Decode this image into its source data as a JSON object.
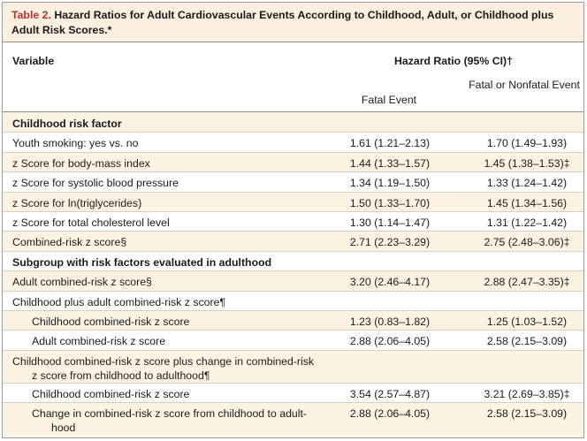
{
  "table": {
    "number": "Table 2.",
    "title": "Hazard Ratios for Adult Cardiovascular Events According to Childhood, Adult, or Childhood plus Adult Risk Scores.*",
    "headers": {
      "variable": "Variable",
      "hazard_ratio": "Hazard Ratio (95% CI)†",
      "fatal": "Fatal Event",
      "fatal_nonfatal": "Fatal or Nonfatal Event"
    },
    "rows": [
      {
        "label": "Childhood risk factor",
        "type": "section",
        "fatal": "",
        "fatal_nonfatal": ""
      },
      {
        "label": "Youth smoking: yes vs. no",
        "type": "item",
        "fatal": "1.61 (1.21–2.13)",
        "fatal_nonfatal": "1.70 (1.49–1.93)"
      },
      {
        "label": "z Score for body-mass index",
        "type": "item",
        "fatal": "1.44 (1.33–1.57)",
        "fatal_nonfatal": "1.45 (1.38–1.53)‡"
      },
      {
        "label": "z Score for systolic blood pressure",
        "type": "item",
        "fatal": "1.34 (1.19–1.50)",
        "fatal_nonfatal": "1.33 (1.24–1.42)"
      },
      {
        "label": "z Score for ln(triglycerides)",
        "type": "item",
        "fatal": "1.50 (1.33–1.70)",
        "fatal_nonfatal": "1.45 (1.34–1.56)"
      },
      {
        "label": "z Score for total cholesterol level",
        "type": "item",
        "fatal": "1.30 (1.14–1.47)",
        "fatal_nonfatal": "1.31 (1.22–1.42)"
      },
      {
        "label": "Combined-risk z score§",
        "type": "item",
        "fatal": "2.71 (2.23–3.29)",
        "fatal_nonfatal": "2.75 (2.48–3.06)‡"
      },
      {
        "label": "Subgroup with risk factors evaluated in adulthood",
        "type": "section",
        "fatal": "",
        "fatal_nonfatal": ""
      },
      {
        "label": "Adult combined-risk z score§",
        "type": "item",
        "fatal": "3.20 (2.46–4.17)",
        "fatal_nonfatal": "2.88 (2.47–3.35)‡"
      },
      {
        "label": "Childhood plus adult combined-risk z score¶",
        "type": "item",
        "fatal": "",
        "fatal_nonfatal": ""
      },
      {
        "label": "Childhood combined-risk z score",
        "type": "sub",
        "fatal": "1.23 (0.83–1.82)",
        "fatal_nonfatal": "1.25 (1.03–1.52)"
      },
      {
        "label": "Adult combined-risk z score",
        "type": "sub",
        "fatal": "2.88 (2.06–4.05)",
        "fatal_nonfatal": "2.58 (2.15–3.09)"
      },
      {
        "label": "Childhood combined-risk z score plus change in combined-risk",
        "label2": "z score from childhood to adulthood¶",
        "type": "item",
        "fatal": "",
        "fatal_nonfatal": ""
      },
      {
        "label": "Childhood combined-risk z score",
        "type": "sub",
        "fatal": "3.54 (2.57–4.87)",
        "fatal_nonfatal": "3.21 (2.69–3.85)‡"
      },
      {
        "label": "Change in combined-risk z score from childhood to adult-",
        "label2": "hood",
        "type": "sub",
        "fatal": "2.88 (2.06–4.05)",
        "fatal_nonfatal": "2.58 (2.15–3.09)"
      }
    ]
  }
}
